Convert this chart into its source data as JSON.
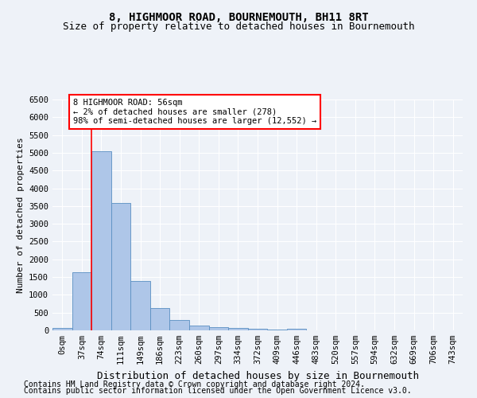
{
  "title": "8, HIGHMOOR ROAD, BOURNEMOUTH, BH11 8RT",
  "subtitle": "Size of property relative to detached houses in Bournemouth",
  "xlabel": "Distribution of detached houses by size in Bournemouth",
  "ylabel": "Number of detached properties",
  "bar_labels": [
    "0sqm",
    "37sqm",
    "74sqm",
    "111sqm",
    "149sqm",
    "186sqm",
    "223sqm",
    "260sqm",
    "297sqm",
    "334sqm",
    "372sqm",
    "409sqm",
    "446sqm",
    "483sqm",
    "520sqm",
    "557sqm",
    "594sqm",
    "632sqm",
    "669sqm",
    "706sqm",
    "743sqm"
  ],
  "bar_values": [
    70,
    1630,
    5050,
    3580,
    1400,
    620,
    290,
    140,
    100,
    75,
    50,
    30,
    55,
    0,
    0,
    0,
    0,
    0,
    0,
    0,
    0
  ],
  "bar_color": "#aec6e8",
  "bar_edge_color": "#5a8fc2",
  "vline_x": 1.5,
  "vline_color": "red",
  "annotation_text": "8 HIGHMOOR ROAD: 56sqm\n← 2% of detached houses are smaller (278)\n98% of semi-detached houses are larger (12,552) →",
  "annotation_box_color": "white",
  "annotation_box_edge": "red",
  "ylim": [
    0,
    6500
  ],
  "yticks": [
    0,
    500,
    1000,
    1500,
    2000,
    2500,
    3000,
    3500,
    4000,
    4500,
    5000,
    5500,
    6000,
    6500
  ],
  "footer_line1": "Contains HM Land Registry data © Crown copyright and database right 2024.",
  "footer_line2": "Contains public sector information licensed under the Open Government Licence v3.0.",
  "bg_color": "#eef2f8",
  "plot_bg_color": "#eef2f8",
  "grid_color": "white",
  "title_fontsize": 10,
  "subtitle_fontsize": 9,
  "xlabel_fontsize": 9,
  "ylabel_fontsize": 8,
  "tick_fontsize": 7.5,
  "footer_fontsize": 7
}
